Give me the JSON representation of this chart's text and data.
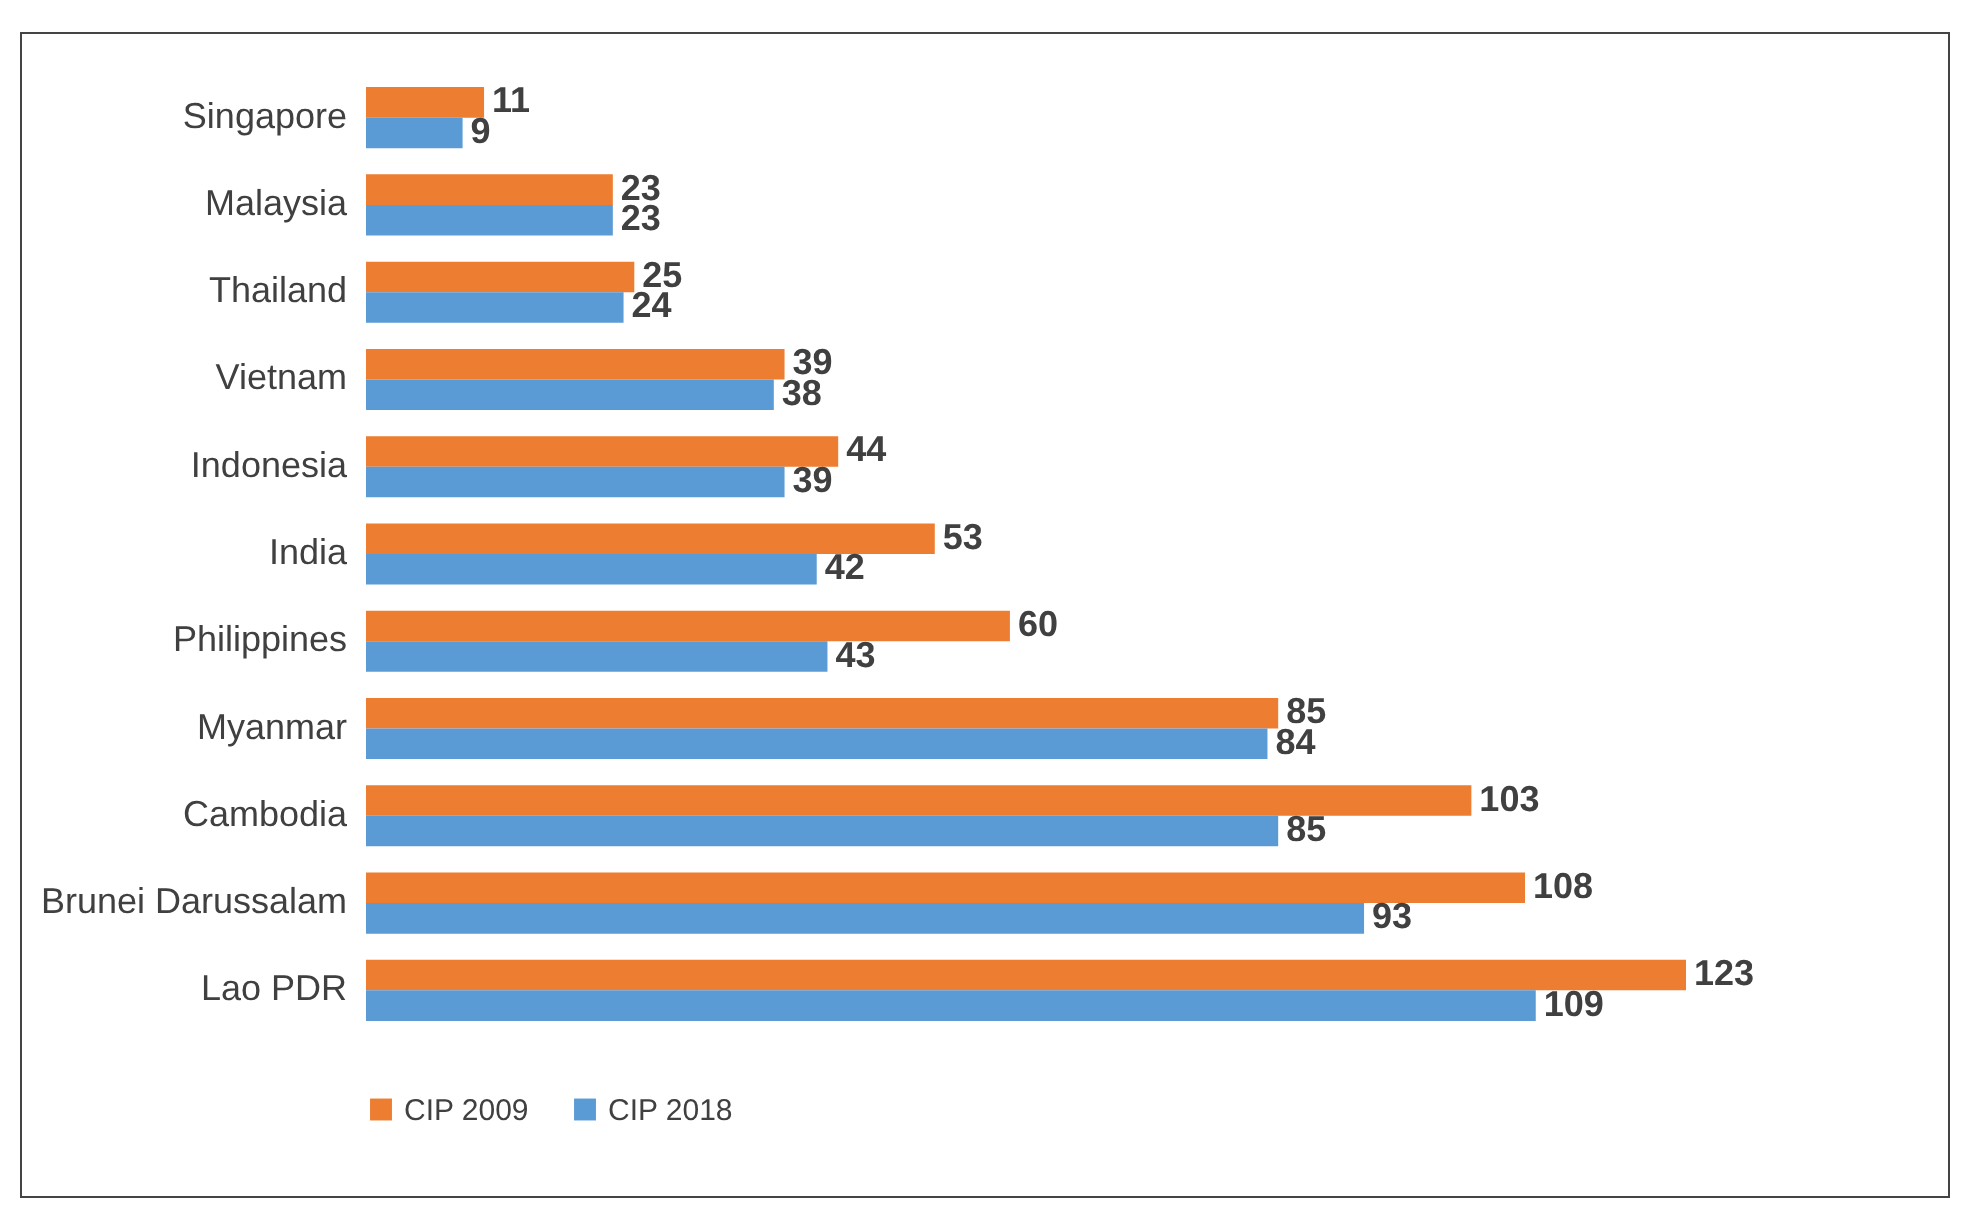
{
  "chart_data": {
    "type": "bar",
    "orientation": "horizontal",
    "categories": [
      "Singapore",
      "Malaysia",
      "Thailand",
      "Vietnam",
      "Indonesia",
      "India",
      "Philippines",
      "Myanmar",
      "Cambodia",
      "Brunei Darussalam",
      "Lao PDR"
    ],
    "series": [
      {
        "name": "CIP 2009",
        "color": "#ed7d31",
        "values": [
          11,
          23,
          25,
          39,
          44,
          53,
          60,
          85,
          103,
          108,
          123
        ]
      },
      {
        "name": "CIP 2018",
        "color": "#5b9bd5",
        "values": [
          9,
          23,
          24,
          38,
          39,
          42,
          43,
          84,
          85,
          93,
          109
        ]
      }
    ],
    "data_labels": true,
    "legend": "bottom"
  }
}
